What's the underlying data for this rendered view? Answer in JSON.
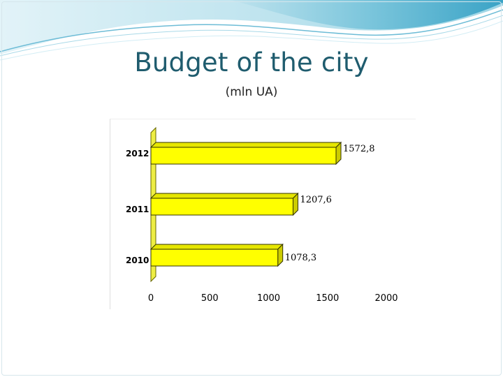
{
  "slide": {
    "title": "Budget of the city",
    "subtitle": "(mln UA)",
    "colors": {
      "title": "#1f5c6e",
      "bar": "#ffff00",
      "bar_side": "#cccc00",
      "bar_top": "#e6e600",
      "back_wall": "#eeee44",
      "wave": "#5bb3cf"
    }
  },
  "chart_data": {
    "type": "bar",
    "orientation": "horizontal",
    "style": "3d",
    "categories": [
      "2010",
      "2011",
      "2012"
    ],
    "values": [
      1078.3,
      1207.6,
      1572.8
    ],
    "value_labels": [
      "1078,3",
      "1207,6",
      "1572,8"
    ],
    "x_ticks": [
      "0",
      "500",
      "1000",
      "1500",
      "2000"
    ],
    "xlim": [
      0,
      2000
    ],
    "title": "",
    "xlabel": "",
    "ylabel": "",
    "legend": "none",
    "grid": false
  }
}
